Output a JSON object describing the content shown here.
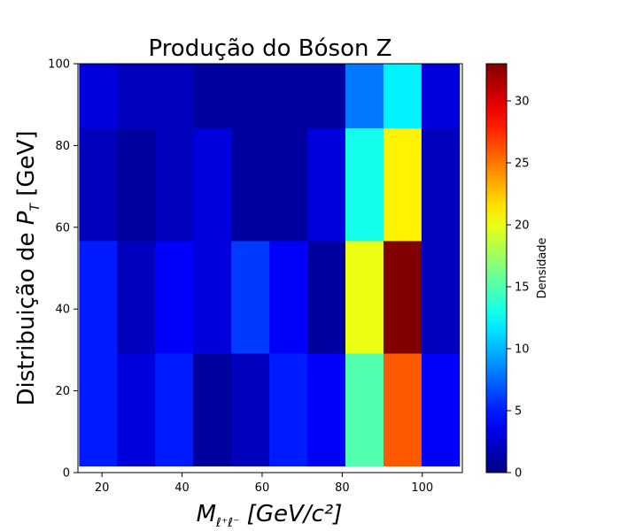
{
  "chart_data": {
    "type": "heatmap",
    "title": "Produção do Bóson Z",
    "xlabel": {
      "main": "M",
      "sub": "ℓ⁺ℓ⁻",
      "rest": " [GeV/c²]"
    },
    "ylabel": {
      "prefix": "Distribuição de ",
      "sym": "P",
      "sub": "T",
      "rest": " [GeV]"
    },
    "x_edges": [
      14.3,
      23.8,
      33.3,
      42.8,
      52.3,
      61.8,
      71.3,
      80.8,
      90.3,
      99.8,
      109.3
    ],
    "y_edges": [
      1.6,
      29.2,
      56.7,
      84.3,
      100
    ],
    "xlim": [
      14,
      110
    ],
    "ylim": [
      0,
      100
    ],
    "x_ticks": [
      20,
      40,
      60,
      80,
      100
    ],
    "y_ticks": [
      0,
      20,
      40,
      60,
      80,
      100
    ],
    "values": [
      [
        5,
        3,
        5,
        1,
        2,
        5,
        4,
        15,
        26,
        4
      ],
      [
        5,
        2,
        4,
        3,
        6,
        4,
        1,
        20,
        33,
        2
      ],
      [
        2,
        1,
        2,
        3,
        1,
        1,
        3,
        13,
        21,
        2
      ],
      [
        3,
        2,
        2,
        1,
        1,
        1,
        1,
        8,
        12,
        3
      ]
    ],
    "colorbar": {
      "label": "Densidade",
      "range": [
        0,
        33
      ],
      "ticks": [
        0,
        5,
        10,
        15,
        20,
        25,
        30
      ],
      "colormap": "jet"
    }
  }
}
